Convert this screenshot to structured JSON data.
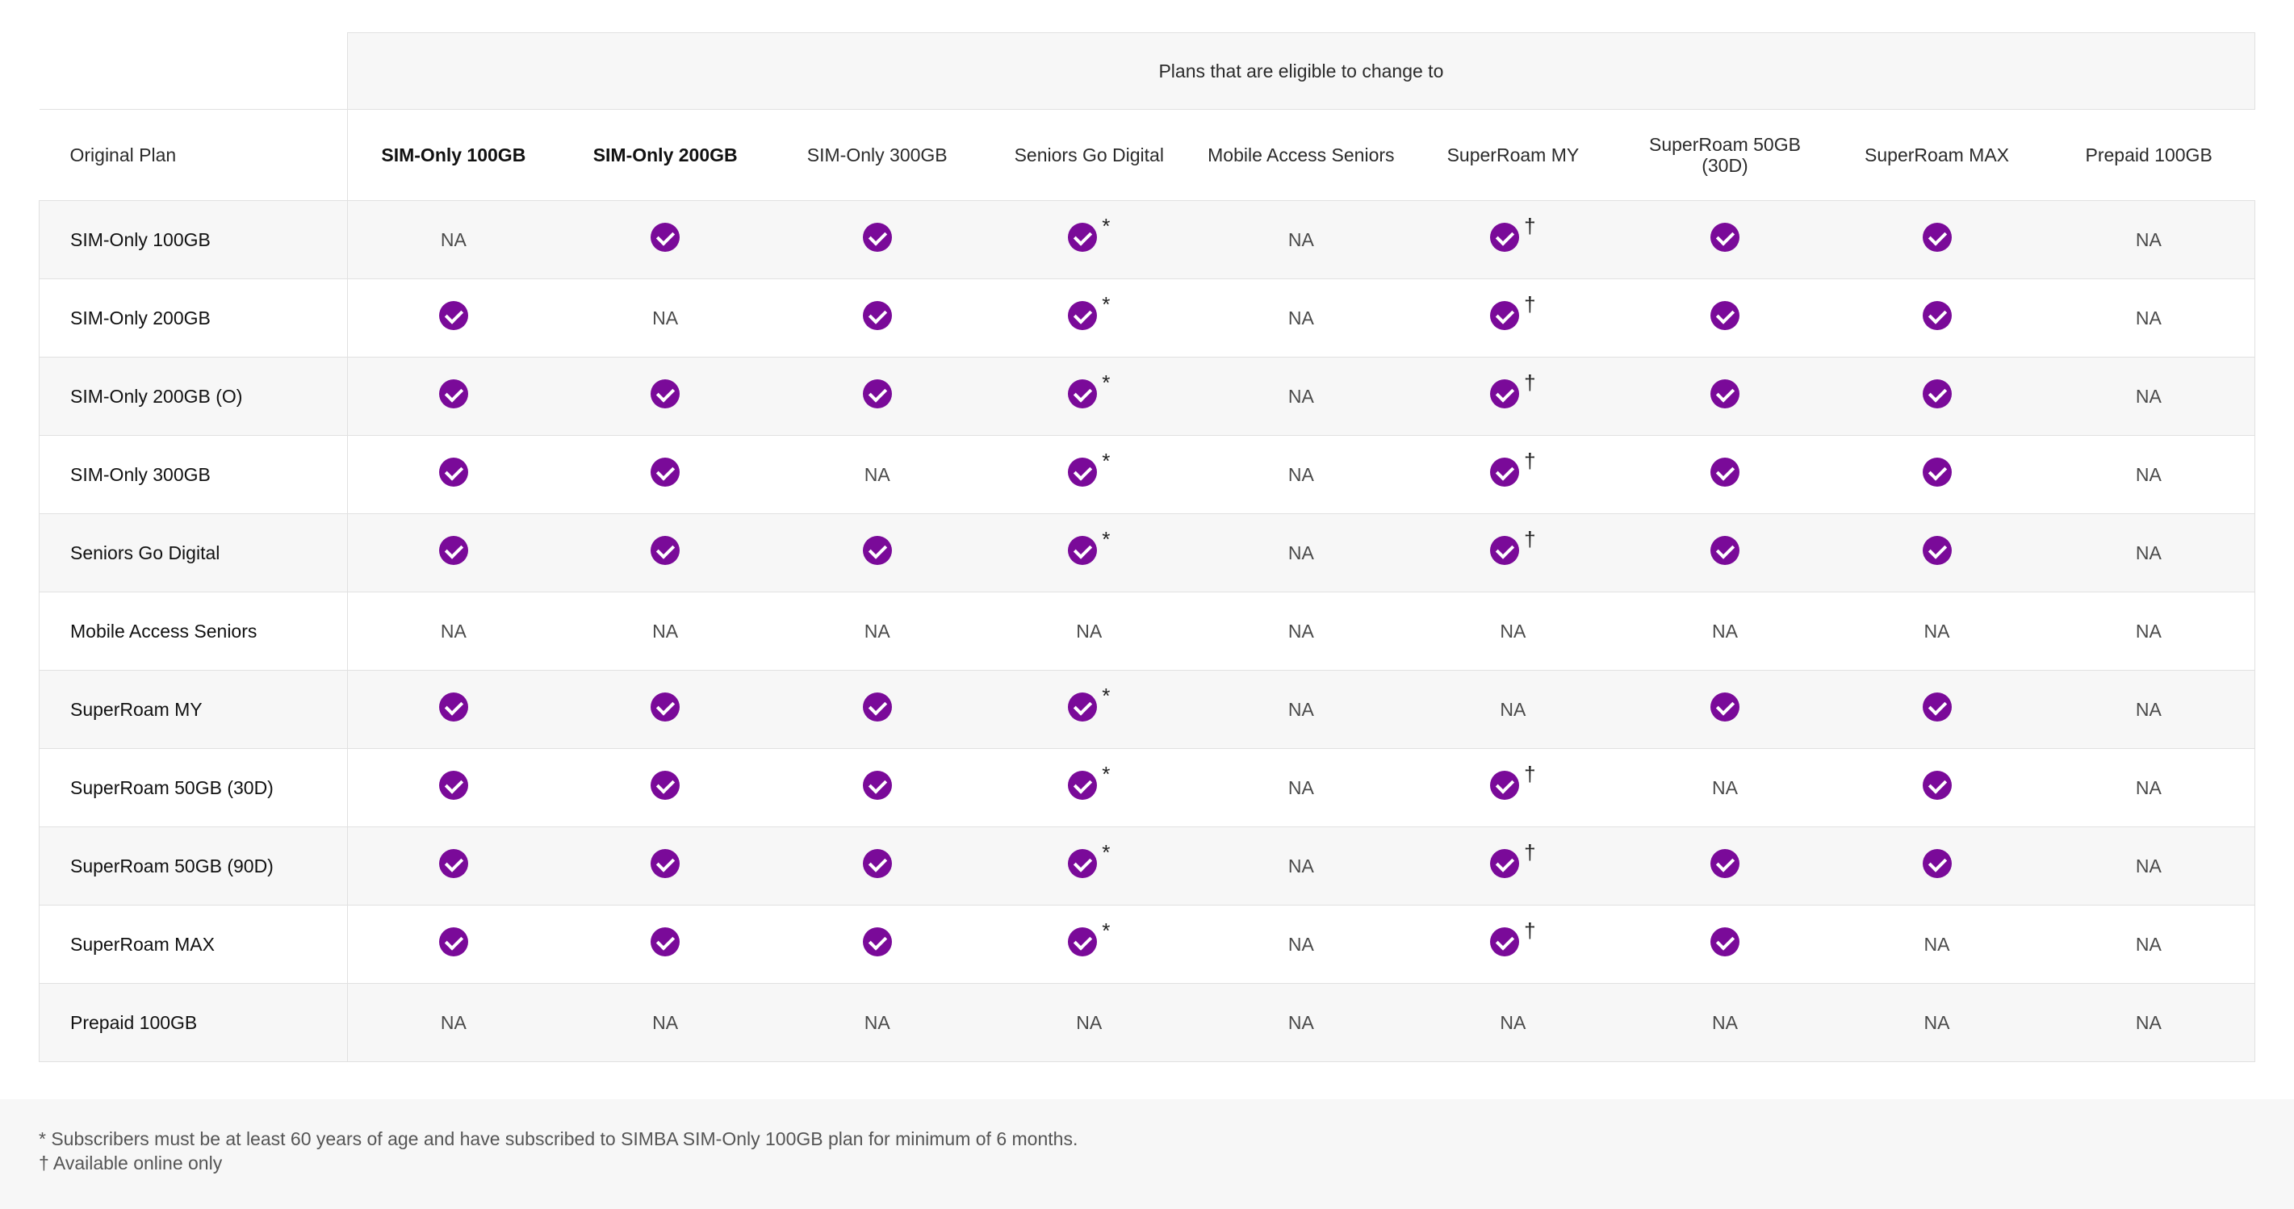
{
  "table": {
    "group_header": "Plans that are eligible to change to",
    "original_plan_label": "Original Plan",
    "columns": [
      {
        "label": "SIM-Only 100GB",
        "bold": true
      },
      {
        "label": "SIM-Only 200GB",
        "bold": true
      },
      {
        "label": "SIM-Only 300GB",
        "bold": false
      },
      {
        "label": "Seniors Go Digital",
        "bold": false
      },
      {
        "label": "Mobile Access Seniors",
        "bold": false
      },
      {
        "label": "SuperRoam MY",
        "bold": false
      },
      {
        "label": "SuperRoam 50GB (30D)",
        "bold": false
      },
      {
        "label": "SuperRoam MAX",
        "bold": false
      },
      {
        "label": "Prepaid 100GB",
        "bold": false
      }
    ],
    "na_text": "NA",
    "icons": {
      "eligible": "check-circle-icon",
      "color": "#7a0a99"
    },
    "rows": [
      {
        "label": "SIM-Only 100GB",
        "cells": [
          "NA",
          "check",
          "check",
          "check*",
          "NA",
          "check†",
          "check",
          "check",
          "NA"
        ]
      },
      {
        "label": "SIM-Only 200GB",
        "cells": [
          "check",
          "NA",
          "check",
          "check*",
          "NA",
          "check†",
          "check",
          "check",
          "NA"
        ]
      },
      {
        "label": "SIM-Only 200GB (O)",
        "cells": [
          "check",
          "check",
          "check",
          "check*",
          "NA",
          "check†",
          "check",
          "check",
          "NA"
        ]
      },
      {
        "label": "SIM-Only 300GB",
        "cells": [
          "check",
          "check",
          "NA",
          "check*",
          "NA",
          "check†",
          "check",
          "check",
          "NA"
        ]
      },
      {
        "label": "Seniors Go Digital",
        "cells": [
          "check",
          "check",
          "check",
          "check*",
          "NA",
          "check†",
          "check",
          "check",
          "NA"
        ]
      },
      {
        "label": "Mobile Access Seniors",
        "cells": [
          "NA",
          "NA",
          "NA",
          "NA",
          "NA",
          "NA",
          "NA",
          "NA",
          "NA"
        ]
      },
      {
        "label": "SuperRoam MY",
        "cells": [
          "check",
          "check",
          "check",
          "check*",
          "NA",
          "NA",
          "check",
          "check",
          "NA"
        ]
      },
      {
        "label": "SuperRoam 50GB (30D)",
        "cells": [
          "check",
          "check",
          "check",
          "check*",
          "NA",
          "check†",
          "NA",
          "check",
          "NA"
        ]
      },
      {
        "label": "SuperRoam 50GB (90D)",
        "cells": [
          "check",
          "check",
          "check",
          "check*",
          "NA",
          "check†",
          "check",
          "check",
          "NA"
        ]
      },
      {
        "label": "SuperRoam MAX",
        "cells": [
          "check",
          "check",
          "check",
          "check*",
          "NA",
          "check†",
          "check",
          "NA",
          "NA"
        ]
      },
      {
        "label": "Prepaid 100GB",
        "cells": [
          "NA",
          "NA",
          "NA",
          "NA",
          "NA",
          "NA",
          "NA",
          "NA",
          "NA"
        ]
      }
    ]
  },
  "footnotes": {
    "asterisk": "* Subscribers must be at least 60 years of age and have subscribed to SIMBA SIM-Only 100GB plan for minimum of 6 months.",
    "dagger": "† Available online only"
  }
}
